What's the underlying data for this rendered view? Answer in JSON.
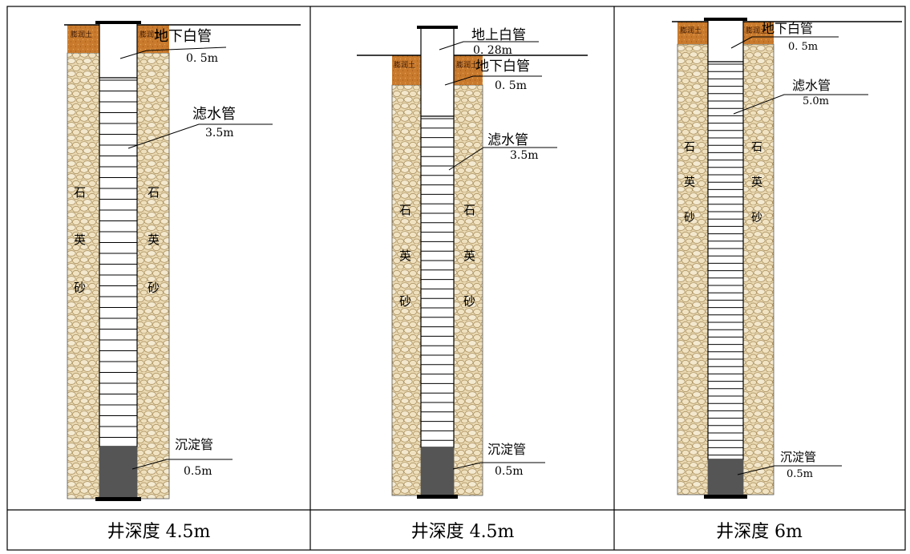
{
  "panels": [
    {
      "caption": "井深度 4.5m",
      "labels": {
        "clay": "膨润土",
        "blank_below": "地下白管",
        "blank_below_len": "0. 5m",
        "screen": "滤水管",
        "screen_len": "3.5m",
        "sand": [
          "石",
          "英",
          "砂"
        ],
        "sump": "沉淀管",
        "sump_len": "0.5m"
      }
    },
    {
      "caption": "井深度 4.5m",
      "labels": {
        "clay": "膨润土",
        "blank_above": "地上白管",
        "blank_above_len": "0. 28m",
        "blank_below": "地下白管",
        "blank_below_len": "0. 5m",
        "screen": "滤水管",
        "screen_len": "3.5m",
        "sand": [
          "石",
          "英",
          "砂"
        ],
        "sump": "沉淀管",
        "sump_len": "0.5m"
      }
    },
    {
      "caption": "井深度 6m",
      "labels": {
        "clay": "膨润土",
        "blank_below": "地下白管",
        "blank_below_len": "0. 5m",
        "screen": "滤水管",
        "screen_len": "5.0m",
        "sand": [
          "石",
          "英",
          "砂"
        ],
        "sump": "沉淀管",
        "sump_len": "0.5m"
      }
    }
  ],
  "colors": {
    "sand_fill": "#e6d3a8",
    "sand_stroke": "#a78c5b",
    "clay": "#c8782a",
    "sump": "#555555",
    "line": "#000000"
  }
}
